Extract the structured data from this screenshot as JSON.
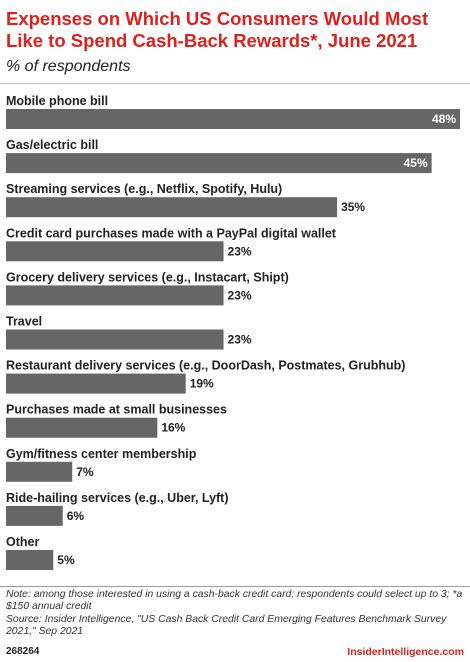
{
  "chart_data": {
    "type": "bar",
    "orientation": "horizontal",
    "title": "Expenses on Which US Consumers Would Most Like to Spend Cash-Back Rewards*, June 2021",
    "subtitle": "% of respondents",
    "categories": [
      "Mobile phone bill",
      "Gas/electric bill",
      "Streaming services (e.g., Netflix, Spotify, Hulu)",
      "Credit card purchases made with a PayPal digital wallet",
      "Grocery delivery services (e.g., Instacart, Shipt)",
      "Travel",
      "Restaurant delivery services (e.g., DoorDash, Postmates, Grubhub)",
      "Purchases made at small businesses",
      "Gym/fitness center membership",
      "Ride-hailing services (e.g., Uber, Lyft)",
      "Other"
    ],
    "values": [
      48,
      45,
      35,
      23,
      23,
      23,
      19,
      16,
      7,
      6,
      5
    ],
    "value_labels": [
      "48%",
      "45%",
      "35%",
      "23%",
      "23%",
      "23%",
      "19%",
      "16%",
      "7%",
      "6%",
      "5%"
    ],
    "xlim": [
      0,
      48
    ],
    "bar_color": "#666666",
    "grid": false,
    "legend": "none"
  },
  "notes": {
    "note": "Note: among those interested in using a cash-back credit card; respondents could select up to 3; *a $150 annual credit",
    "source": "Source: Insider Intelligence, \"US Cash Back Credit Card Emerging Features Benchmark Survey 2021,\" Sep 2021"
  },
  "footer": {
    "chart_id": "268264",
    "brand": "InsiderIntelligence.com"
  },
  "colors": {
    "title": "#e0201c",
    "bar": "#666666",
    "brand": "#e0201c"
  }
}
